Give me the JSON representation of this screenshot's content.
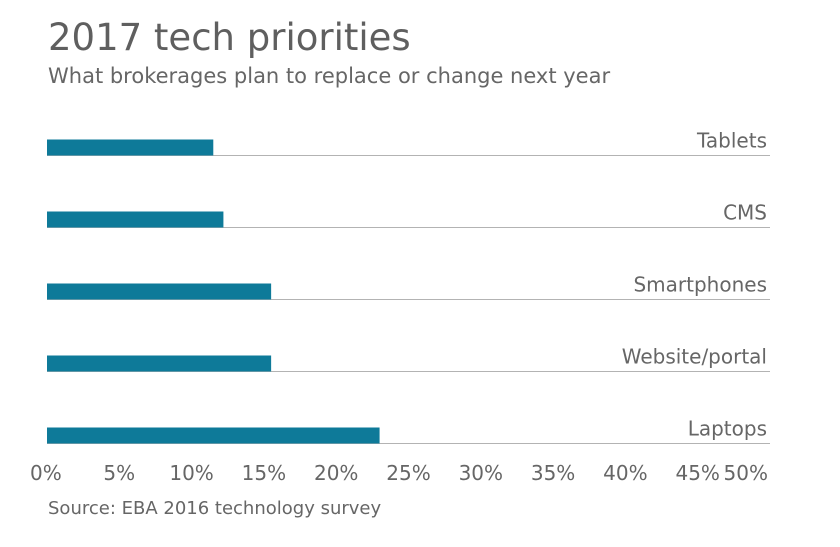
{
  "title": "2017 tech priorities",
  "subtitle": "What brokerages plan to replace or change next year",
  "source": "Source: EBA 2016 technology survey",
  "colors": {
    "bar": "#0e7a99",
    "rule": "#b3b3b3",
    "text": "#666666"
  },
  "chart_data": {
    "type": "bar",
    "orientation": "horizontal",
    "title": "2017 tech priorities",
    "subtitle": "What brokerages plan to replace or change next year",
    "categories": [
      "Tablets",
      "CMS",
      "Smartphones",
      "Website/portal",
      "Laptops"
    ],
    "values": [
      11.5,
      12.2,
      15.5,
      15.5,
      23.0
    ],
    "unit": "%",
    "xlim": [
      0,
      50
    ],
    "x_ticks": [
      0,
      5,
      10,
      15,
      20,
      25,
      30,
      35,
      40,
      45,
      50
    ],
    "x_tick_labels": [
      "0%",
      "5%",
      "10%",
      "15%",
      "20%",
      "25%",
      "30%",
      "35%",
      "40%",
      "45%",
      "50%"
    ],
    "xlabel": "",
    "ylabel": "",
    "grid": false,
    "legend": "none"
  }
}
